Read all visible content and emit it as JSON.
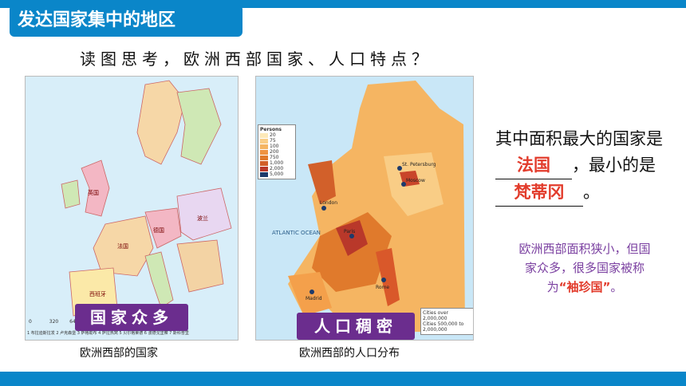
{
  "header": {
    "title": "发达国家集中的地区"
  },
  "question": "读图思考，欧洲西部国家、人口特点？",
  "left_map": {
    "badge": "国家众多",
    "caption": "欧洲西部的国家",
    "scale_labels": [
      "0",
      "320",
      "640"
    ],
    "footnote": "1 布拉迪斯拉发  2 卢克森堡  3 萨格勒布  4 萨拉热窝  5 贝尔格莱德  6 波德戈里察  7 斯科普里"
  },
  "right_map": {
    "badge": "人口稠密",
    "caption": "欧洲西部的人口分布",
    "ocean_label": "ATLANTIC OCEAN",
    "legend_title": "Persons",
    "legend_values": [
      "20",
      "75",
      "100",
      "200",
      "750",
      "1,000",
      "2,000",
      "5,000"
    ],
    "cities_legend": [
      "Cities over 2,000,000",
      "Cities 500,000 to 2,000,000"
    ],
    "city_labels": [
      "Moscow",
      "St. Petersburg",
      "Madrid",
      "Rome",
      "Paris",
      "London"
    ]
  },
  "fill_in": {
    "line1": "其中面积最大的国家是",
    "answer1": "法国",
    "line2": "，最小的是",
    "answer2": "梵蒂冈",
    "end": "。"
  },
  "note": {
    "text": "欧洲西部面积狭小，但国家众多，很多国家被称为",
    "highlight": "“袖珍国”",
    "end": "。"
  },
  "colors": {
    "banner": "#0a86c9",
    "badge": "#6b2d8e",
    "answer": "#e23b2b",
    "note": "#7a3fa0"
  }
}
